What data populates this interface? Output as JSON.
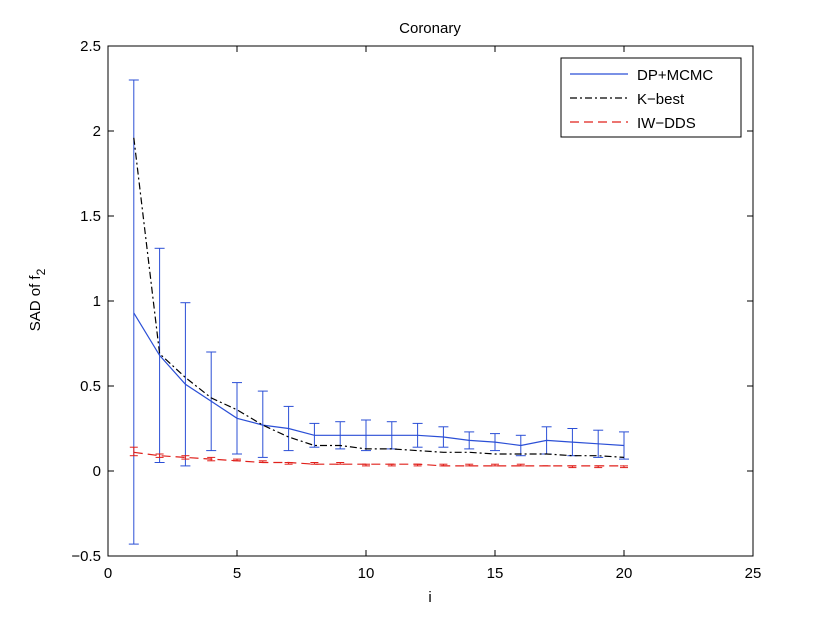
{
  "chart_data": {
    "type": "line",
    "title": "Coronary",
    "xlabel": "i",
    "ylabel_main": "SAD of f",
    "ylabel_sub": "2",
    "xlim": [
      0,
      25
    ],
    "ylim": [
      -0.5,
      2.5
    ],
    "xticks": [
      0,
      5,
      10,
      15,
      20,
      25
    ],
    "yticks": [
      -0.5,
      0,
      0.5,
      1,
      1.5,
      2,
      2.5
    ],
    "ytick_labels": [
      "−0.5",
      "0",
      "0.5",
      "1",
      "1.5",
      "2",
      "2.5"
    ],
    "grid": false,
    "legend_position": "top-right",
    "x": [
      1,
      2,
      3,
      4,
      5,
      6,
      7,
      8,
      9,
      10,
      11,
      12,
      13,
      14,
      15,
      16,
      17,
      18,
      19,
      20
    ],
    "series": [
      {
        "name": "DP+MCMC",
        "color": "#2b4fd6",
        "style": "solid",
        "values": [
          0.93,
          0.68,
          0.51,
          0.41,
          0.31,
          0.27,
          0.25,
          0.21,
          0.21,
          0.21,
          0.21,
          0.21,
          0.2,
          0.18,
          0.17,
          0.15,
          0.18,
          0.17,
          0.16,
          0.15
        ],
        "err_low": [
          -0.43,
          0.05,
          0.03,
          0.12,
          0.1,
          0.08,
          0.12,
          0.14,
          0.13,
          0.12,
          0.13,
          0.14,
          0.14,
          0.13,
          0.12,
          0.09,
          0.1,
          0.09,
          0.08,
          0.07
        ],
        "err_high": [
          2.3,
          1.31,
          0.99,
          0.7,
          0.52,
          0.47,
          0.38,
          0.28,
          0.29,
          0.3,
          0.29,
          0.28,
          0.26,
          0.23,
          0.22,
          0.21,
          0.26,
          0.25,
          0.24,
          0.23
        ]
      },
      {
        "name": "K−best",
        "color": "#000000",
        "style": "dashdot",
        "values": [
          1.96,
          0.69,
          0.55,
          0.43,
          0.36,
          0.27,
          0.2,
          0.15,
          0.15,
          0.13,
          0.13,
          0.12,
          0.11,
          0.11,
          0.1,
          0.1,
          0.1,
          0.09,
          0.09,
          0.08
        ]
      },
      {
        "name": "IW−DDS",
        "color": "#e0201b",
        "style": "dashed",
        "values": [
          0.11,
          0.09,
          0.08,
          0.07,
          0.06,
          0.05,
          0.05,
          0.04,
          0.04,
          0.04,
          0.04,
          0.04,
          0.03,
          0.03,
          0.03,
          0.03,
          0.03,
          0.03,
          0.03,
          0.03
        ],
        "err_low": [
          0.09,
          0.08,
          0.07,
          0.06,
          0.06,
          0.05,
          0.04,
          0.04,
          0.04,
          0.03,
          0.03,
          0.03,
          0.03,
          0.03,
          0.03,
          0.03,
          0.03,
          0.02,
          0.02,
          0.02
        ],
        "err_high": [
          0.14,
          0.1,
          0.09,
          0.08,
          0.07,
          0.06,
          0.05,
          0.05,
          0.05,
          0.04,
          0.04,
          0.04,
          0.04,
          0.04,
          0.04,
          0.04,
          0.03,
          0.03,
          0.03,
          0.03
        ]
      }
    ]
  }
}
